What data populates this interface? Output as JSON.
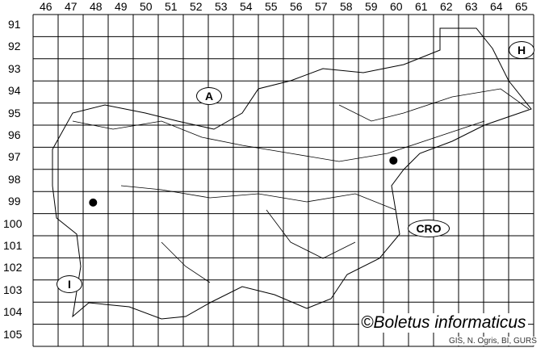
{
  "map": {
    "columns": [
      "46",
      "47",
      "48",
      "49",
      "50",
      "51",
      "52",
      "53",
      "54",
      "55",
      "56",
      "57",
      "58",
      "59",
      "60",
      "61",
      "62",
      "63",
      "64",
      "65"
    ],
    "rows": [
      "91",
      "92",
      "93",
      "94",
      "95",
      "96",
      "97",
      "98",
      "99",
      "100",
      "101",
      "102",
      "103",
      "104",
      "105"
    ],
    "country_labels": [
      {
        "id": "austria",
        "text": "A"
      },
      {
        "id": "hungary",
        "text": "H"
      },
      {
        "id": "croatia",
        "text": "CRO"
      },
      {
        "id": "italy",
        "text": "I"
      }
    ],
    "records": [
      {
        "column": "48",
        "row": "99"
      },
      {
        "column": "60",
        "row": "97"
      }
    ],
    "credit": "©Boletus informaticus",
    "source": "GIS, N. Ogris, BI, GURS",
    "colors": {
      "grid": "#000000",
      "outline": "#000000",
      "dot": "#000000"
    }
  }
}
